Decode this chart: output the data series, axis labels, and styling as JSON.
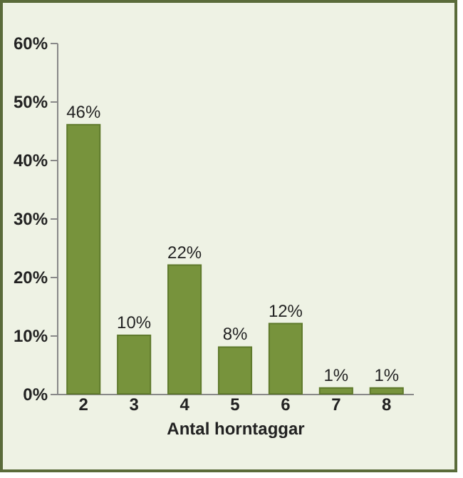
{
  "chart_data": {
    "type": "bar",
    "xlabel": "Antal horntaggar",
    "categories": [
      "2",
      "3",
      "4",
      "5",
      "6",
      "7",
      "8"
    ],
    "values": [
      46,
      10,
      22,
      8,
      12,
      1,
      1
    ],
    "value_labels": [
      "46%",
      "10%",
      "22%",
      "8%",
      "12%",
      "1%",
      "1%"
    ],
    "color": "#77933c",
    "ylim": [
      0,
      60
    ],
    "yticks": [
      {
        "value": 0,
        "label": "0%"
      },
      {
        "value": 10,
        "label": "10%"
      },
      {
        "value": 20,
        "label": "20%"
      },
      {
        "value": 30,
        "label": "30%"
      },
      {
        "value": 40,
        "label": "40%"
      },
      {
        "value": 50,
        "label": "50%"
      },
      {
        "value": 60,
        "label": "60%"
      }
    ],
    "grid": false
  }
}
